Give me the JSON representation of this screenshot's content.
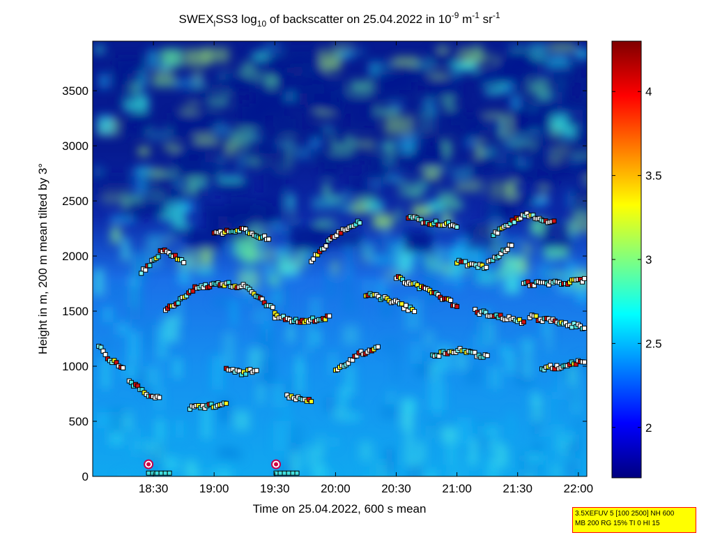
{
  "chart_data": {
    "type": "heatmap",
    "title": {
      "prefix": "SWEX",
      "sub1": "l",
      "mid1": "SS3 log",
      "sub2": "10",
      "mid2": " of backscatter on 25.04.2022 in 10",
      "sup1": "-9",
      "mid3": " m",
      "sup2": "-1",
      "mid4": " sr",
      "sup3": "-1"
    },
    "xlabel": "Time on 25.04.2022, 600 s mean",
    "ylabel": "Height in m, 200 m mean tilted by 3°",
    "x_ticks": [
      "18:30",
      "19:00",
      "19:30",
      "20:00",
      "20:30",
      "21:00",
      "21:30",
      "22:00"
    ],
    "x_tick_hours": [
      18.5,
      19.0,
      19.5,
      20.0,
      20.5,
      21.0,
      21.5,
      22.0
    ],
    "xlim_hours": [
      18.0,
      22.07
    ],
    "y_ticks": [
      "0",
      "500",
      "1000",
      "1500",
      "2000",
      "2500",
      "3000",
      "3500"
    ],
    "y_tick_values": [
      0,
      500,
      1000,
      1500,
      2000,
      2500,
      3000,
      3500
    ],
    "ylim": [
      0,
      3950
    ],
    "colorbar": {
      "range": [
        1.7,
        4.3
      ],
      "ticks": [
        "2",
        "2.5",
        "3",
        "3.5",
        "4"
      ],
      "tick_values": [
        2.0,
        2.5,
        3.0,
        3.5,
        4.0
      ]
    },
    "layers": [
      {
        "hour_start": 18.05,
        "hour_end": 18.25,
        "height": [
          1180,
          1050,
          1000
        ]
      },
      {
        "hour_start": 18.3,
        "hour_end": 18.55,
        "height": [
          860,
          760,
          700
        ]
      },
      {
        "hour_start": 18.8,
        "hour_end": 19.1,
        "height": [
          620,
          640,
          650
        ]
      },
      {
        "hour_start": 19.1,
        "hour_end": 19.35,
        "height": [
          980,
          940,
          960
        ]
      },
      {
        "hour_start": 19.6,
        "hour_end": 19.8,
        "height": [
          720,
          700,
          680
        ]
      },
      {
        "hour_start": 18.6,
        "hour_end": 19.05,
        "height": [
          1500,
          1700,
          1750
        ]
      },
      {
        "hour_start": 19.05,
        "hour_end": 19.5,
        "height": [
          1750,
          1720,
          1500
        ]
      },
      {
        "hour_start": 19.5,
        "hour_end": 19.95,
        "height": [
          1450,
          1400,
          1450
        ]
      },
      {
        "hour_start": 19.0,
        "hour_end": 19.45,
        "height": [
          2200,
          2250,
          2150
        ]
      },
      {
        "hour_start": 19.8,
        "hour_end": 20.2,
        "height": [
          1950,
          2200,
          2320
        ]
      },
      {
        "hour_start": 20.25,
        "hour_end": 20.65,
        "height": [
          1650,
          1600,
          1500
        ]
      },
      {
        "hour_start": 20.5,
        "hour_end": 21.0,
        "height": [
          1800,
          1700,
          1550
        ]
      },
      {
        "hour_start": 20.6,
        "hour_end": 21.0,
        "height": [
          2350,
          2300,
          2280
        ]
      },
      {
        "hour_start": 21.0,
        "hour_end": 21.45,
        "height": [
          1950,
          1900,
          2100
        ]
      },
      {
        "hour_start": 21.15,
        "hour_end": 21.55,
        "height": [
          1500,
          1450,
          1400
        ]
      },
      {
        "hour_start": 21.55,
        "hour_end": 22.05,
        "height": [
          1750,
          1750,
          1780
        ]
      },
      {
        "hour_start": 21.6,
        "hour_end": 22.05,
        "height": [
          1450,
          1400,
          1350
        ]
      },
      {
        "hour_start": 21.7,
        "hour_end": 22.05,
        "height": [
          980,
          1000,
          1050
        ]
      },
      {
        "hour_start": 20.8,
        "hour_end": 21.25,
        "height": [
          1100,
          1150,
          1080
        ]
      },
      {
        "hour_start": 20.0,
        "hour_end": 20.35,
        "height": [
          950,
          1100,
          1180
        ]
      },
      {
        "hour_start": 21.3,
        "hour_end": 21.8,
        "height": [
          2200,
          2380,
          2300
        ]
      },
      {
        "hour_start": 18.4,
        "hour_end": 18.75,
        "height": [
          1850,
          2050,
          1950
        ]
      }
    ]
  },
  "info_box": {
    "line1": "3.5XEFUV 5 [100 2500] NH 600",
    "line2": "MB 200 RG 15% TI 0 HI 15"
  }
}
